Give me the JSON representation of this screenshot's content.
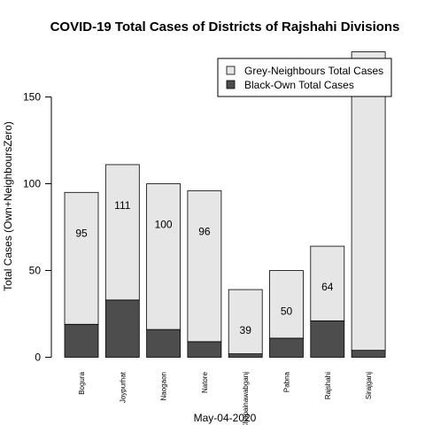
{
  "chart_data": {
    "type": "bar",
    "stacked": true,
    "title": "COVID-19 Total Cases of Districts of Rajshahi Divisions",
    "xlabel": "May-04-2020",
    "ylabel": "Total Cases (Own+NeighboursZero)",
    "ylim": [
      0,
      180
    ],
    "yticks": [
      0,
      50,
      100,
      150
    ],
    "categories": [
      "Bogura",
      "Joypurhat",
      "Naogaon",
      "Natore",
      "Chapainawabganj",
      "Pabna",
      "Rajshahi",
      "Sirajganj"
    ],
    "series": [
      {
        "name": "Black-Own Total Cases",
        "color": "#4d4d4d",
        "values": [
          19,
          33,
          16,
          9,
          2,
          11,
          21,
          4
        ]
      },
      {
        "name": "Grey-Neighbours Total Cases",
        "color": "#e6e6e6",
        "values": [
          76,
          78,
          84,
          87,
          37,
          39,
          43,
          172
        ]
      }
    ],
    "totals": [
      95,
      111,
      100,
      96,
      39,
      50,
      64,
      176
    ],
    "legend": {
      "position": "top-right",
      "entries": [
        "Grey-Neighbours Total Cases",
        "Black-Own Total Cases"
      ]
    },
    "grid": false
  }
}
